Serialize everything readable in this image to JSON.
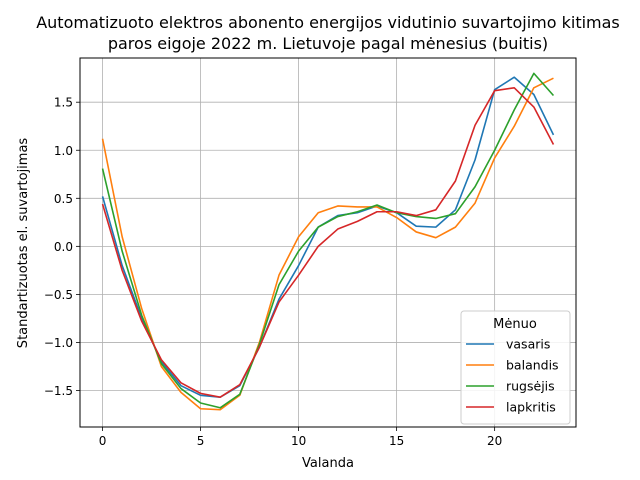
{
  "chart_data": {
    "type": "line",
    "title_lines": [
      "Automatizuoto elektros abonento energijos vidutinio suvartojimo kitimas",
      "paros eigoje 2022 m. Lietuvoje pagal mėnesius  (buitis)"
    ],
    "xlabel": "Valanda",
    "ylabel": "Standartizuotas el. suvartojimas",
    "xlim": [
      -1.15,
      24.15
    ],
    "ylim": [
      -1.88,
      1.96
    ],
    "xticks": [
      0,
      5,
      10,
      15,
      20
    ],
    "yticks": [
      -1.5,
      -1.0,
      -0.5,
      0.0,
      0.5,
      1.0,
      1.5
    ],
    "ytick_labels": [
      "−1.5",
      "−1.0",
      "−0.5",
      "0.0",
      "0.5",
      "1.0",
      "1.5"
    ],
    "grid": true,
    "legend_title": "Mėnuo",
    "legend_position": "lower-right",
    "x": [
      0,
      1,
      2,
      3,
      4,
      5,
      6,
      7,
      8,
      9,
      10,
      11,
      12,
      13,
      14,
      15,
      16,
      17,
      18,
      19,
      20,
      21,
      22,
      23
    ],
    "series": [
      {
        "name": "vasaris",
        "color": "#1f77b4",
        "values": [
          0.52,
          -0.2,
          -0.75,
          -1.2,
          -1.45,
          -1.55,
          -1.57,
          -1.45,
          -1.05,
          -0.55,
          -0.2,
          0.2,
          0.32,
          0.35,
          0.42,
          0.35,
          0.21,
          0.2,
          0.38,
          0.9,
          1.63,
          1.76,
          1.58,
          1.16
        ]
      },
      {
        "name": "balandis",
        "color": "#ff7f0e",
        "values": [
          1.12,
          0.1,
          -0.65,
          -1.25,
          -1.52,
          -1.69,
          -1.7,
          -1.55,
          -1.0,
          -0.3,
          0.1,
          0.35,
          0.42,
          0.41,
          0.41,
          0.3,
          0.15,
          0.09,
          0.2,
          0.45,
          0.92,
          1.25,
          1.65,
          1.75
        ]
      },
      {
        "name": "rugsėjis",
        "color": "#2ca02c",
        "values": [
          0.81,
          -0.05,
          -0.72,
          -1.22,
          -1.48,
          -1.63,
          -1.68,
          -1.54,
          -1.02,
          -0.4,
          -0.05,
          0.2,
          0.31,
          0.36,
          0.43,
          0.35,
          0.31,
          0.29,
          0.34,
          0.62,
          1.0,
          1.42,
          1.8,
          1.57
        ]
      },
      {
        "name": "lapkritis",
        "color": "#d62728",
        "values": [
          0.44,
          -0.25,
          -0.78,
          -1.18,
          -1.42,
          -1.53,
          -1.57,
          -1.44,
          -1.05,
          -0.58,
          -0.3,
          0.0,
          0.18,
          0.26,
          0.36,
          0.36,
          0.32,
          0.38,
          0.68,
          1.26,
          1.62,
          1.65,
          1.45,
          1.06
        ]
      }
    ]
  }
}
